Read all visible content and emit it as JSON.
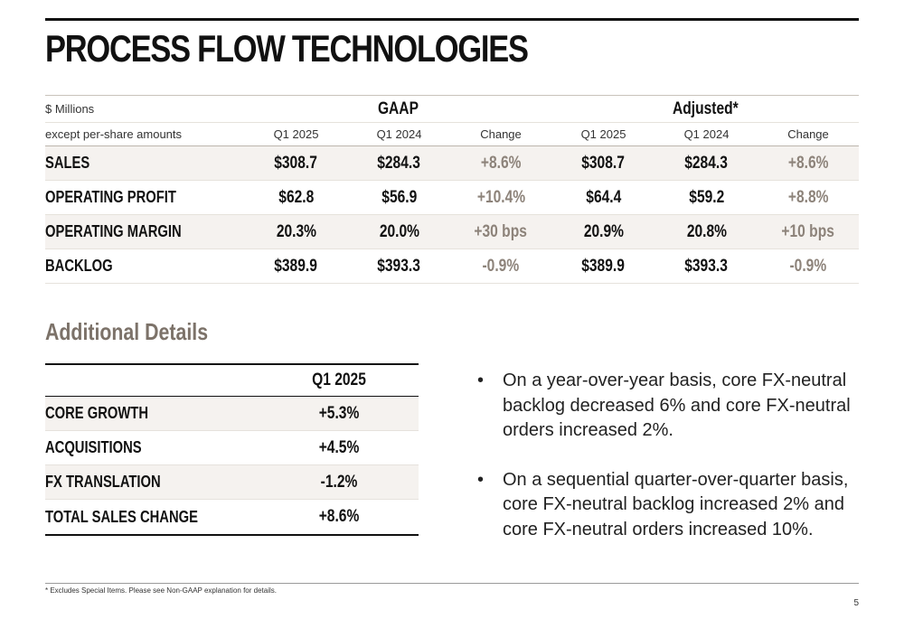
{
  "page": {
    "title": "PROCESS FLOW TECHNOLOGIES",
    "page_number": "5",
    "footnote": "* Excludes Special Items. Please see Non-GAAP explanation for details."
  },
  "main_table": {
    "unit_label": "$ Millions",
    "unit_sublabel": "except per-share amounts",
    "group_gaap": "GAAP",
    "group_adjusted": "Adjusted*",
    "columns": [
      "Q1 2025",
      "Q1 2024",
      "Change",
      "Q1 2025",
      "Q1 2024",
      "Change"
    ],
    "rows": [
      {
        "label": "SALES",
        "values": [
          "$308.7",
          "$284.3",
          "+8.6%",
          "$308.7",
          "$284.3",
          "+8.6%"
        ]
      },
      {
        "label": "OPERATING PROFIT",
        "values": [
          "$62.8",
          "$56.9",
          "+10.4%",
          "$64.4",
          "$59.2",
          "+8.8%"
        ]
      },
      {
        "label": "OPERATING MARGIN",
        "values": [
          "20.3%",
          "20.0%",
          "+30 bps",
          "20.9%",
          "20.8%",
          "+10 bps"
        ]
      },
      {
        "label": "BACKLOG",
        "values": [
          "$389.9",
          "$393.3",
          "-0.9%",
          "$389.9",
          "$393.3",
          "-0.9%"
        ]
      }
    ]
  },
  "additional_details": {
    "title": "Additional Details",
    "column": "Q1 2025",
    "rows": [
      {
        "label": "CORE GROWTH",
        "value": "+5.3%"
      },
      {
        "label": "ACQUISITIONS",
        "value": "+4.5%"
      },
      {
        "label": "FX TRANSLATION",
        "value": "-1.2%"
      },
      {
        "label": "TOTAL SALES CHANGE",
        "value": "+8.6%"
      }
    ]
  },
  "bullets": {
    "marker": "•",
    "items": [
      "On a year-over-year basis, core FX-neutral backlog decreased 6% and core FX-neutral orders increased 2%.",
      "On a sequential quarter-over-quarter basis, core FX-neutral backlog increased 2% and core FX-neutral orders increased 10%."
    ]
  },
  "colors": {
    "title_text": "#111111",
    "change_text": "#8d837a",
    "section_title": "#7c7269",
    "row_shade": "#f5f2ef"
  }
}
